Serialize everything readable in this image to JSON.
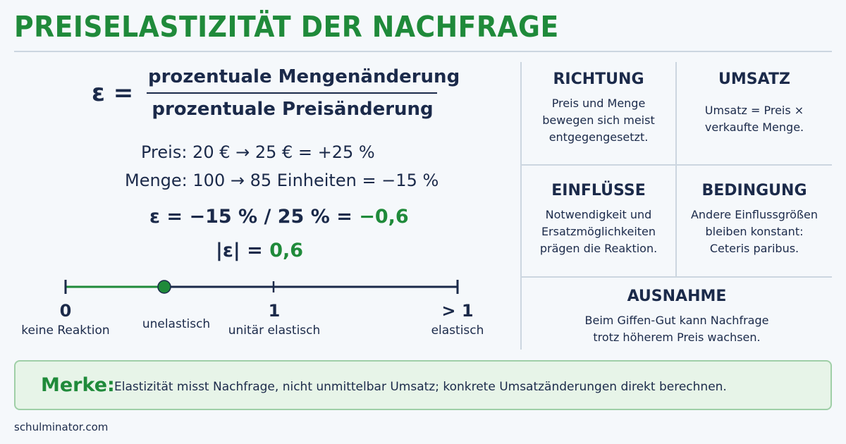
{
  "title": "PREISELASTIZITÄT DER NACHFRAGE",
  "formula": {
    "lhs": "ε =",
    "numerator": "prozentuale Mengenänderung",
    "denominator": "prozentuale Preisänderung"
  },
  "example": {
    "price_line": "Preis:  20 €  →  25 €  =  +25 %",
    "quantity_line": "Menge:  100 → 85 Einheiten = −15 %",
    "eps_prefix": "ε = −15 % / 25 % = ",
    "eps_value": "−0,6",
    "abs_prefix": "|ε| = ",
    "abs_value": "0,6"
  },
  "scale": {
    "marker_value": 0.6,
    "points": [
      {
        "value": "0",
        "desc": "keine Reaktion"
      },
      {
        "value": "",
        "desc": "unelastisch"
      },
      {
        "value": "1",
        "desc": "unitär elastisch"
      },
      {
        "value": "> 1",
        "desc": "elastisch"
      }
    ],
    "colors": {
      "track": "#1b2a4a",
      "highlight": "#1f8a3a"
    }
  },
  "cards": {
    "richtung": {
      "heading": "RICHTUNG",
      "lines": [
        "Preis und Menge",
        "bewegen sich meist",
        "entgegengesetzt."
      ]
    },
    "umsatz": {
      "heading": "UMSATZ",
      "lines": [
        "Umsatz = Preis ×",
        "verkaufte Menge."
      ]
    },
    "einfluesse": {
      "heading": "EINFLÜSSE",
      "lines": [
        "Notwendigkeit und",
        "Ersatzmöglichkeiten",
        "prägen die Reaktion."
      ]
    },
    "bedingung": {
      "heading": "BEDINGUNG",
      "lines": [
        "Andere Einflussgrößen",
        "bleiben konstant:",
        "Ceteris paribus."
      ]
    },
    "ausnahme": {
      "heading": "AUSNAHME",
      "lines": [
        "Beim Giffen-Gut kann Nachfrage",
        "trotz höherem Preis wachsen."
      ]
    }
  },
  "merke": {
    "label": "Merke:",
    "text": "Elastizität misst Nachfrage, nicht unmittelbar Umsatz; konkrete Umsatzänderungen direkt berechnen."
  },
  "footer": "schulminator.com",
  "colors": {
    "green": "#1f8a3a",
    "navy": "#1b2a4a",
    "merke_bg": "#e7f4e8",
    "merke_border": "#9fcfa7"
  }
}
